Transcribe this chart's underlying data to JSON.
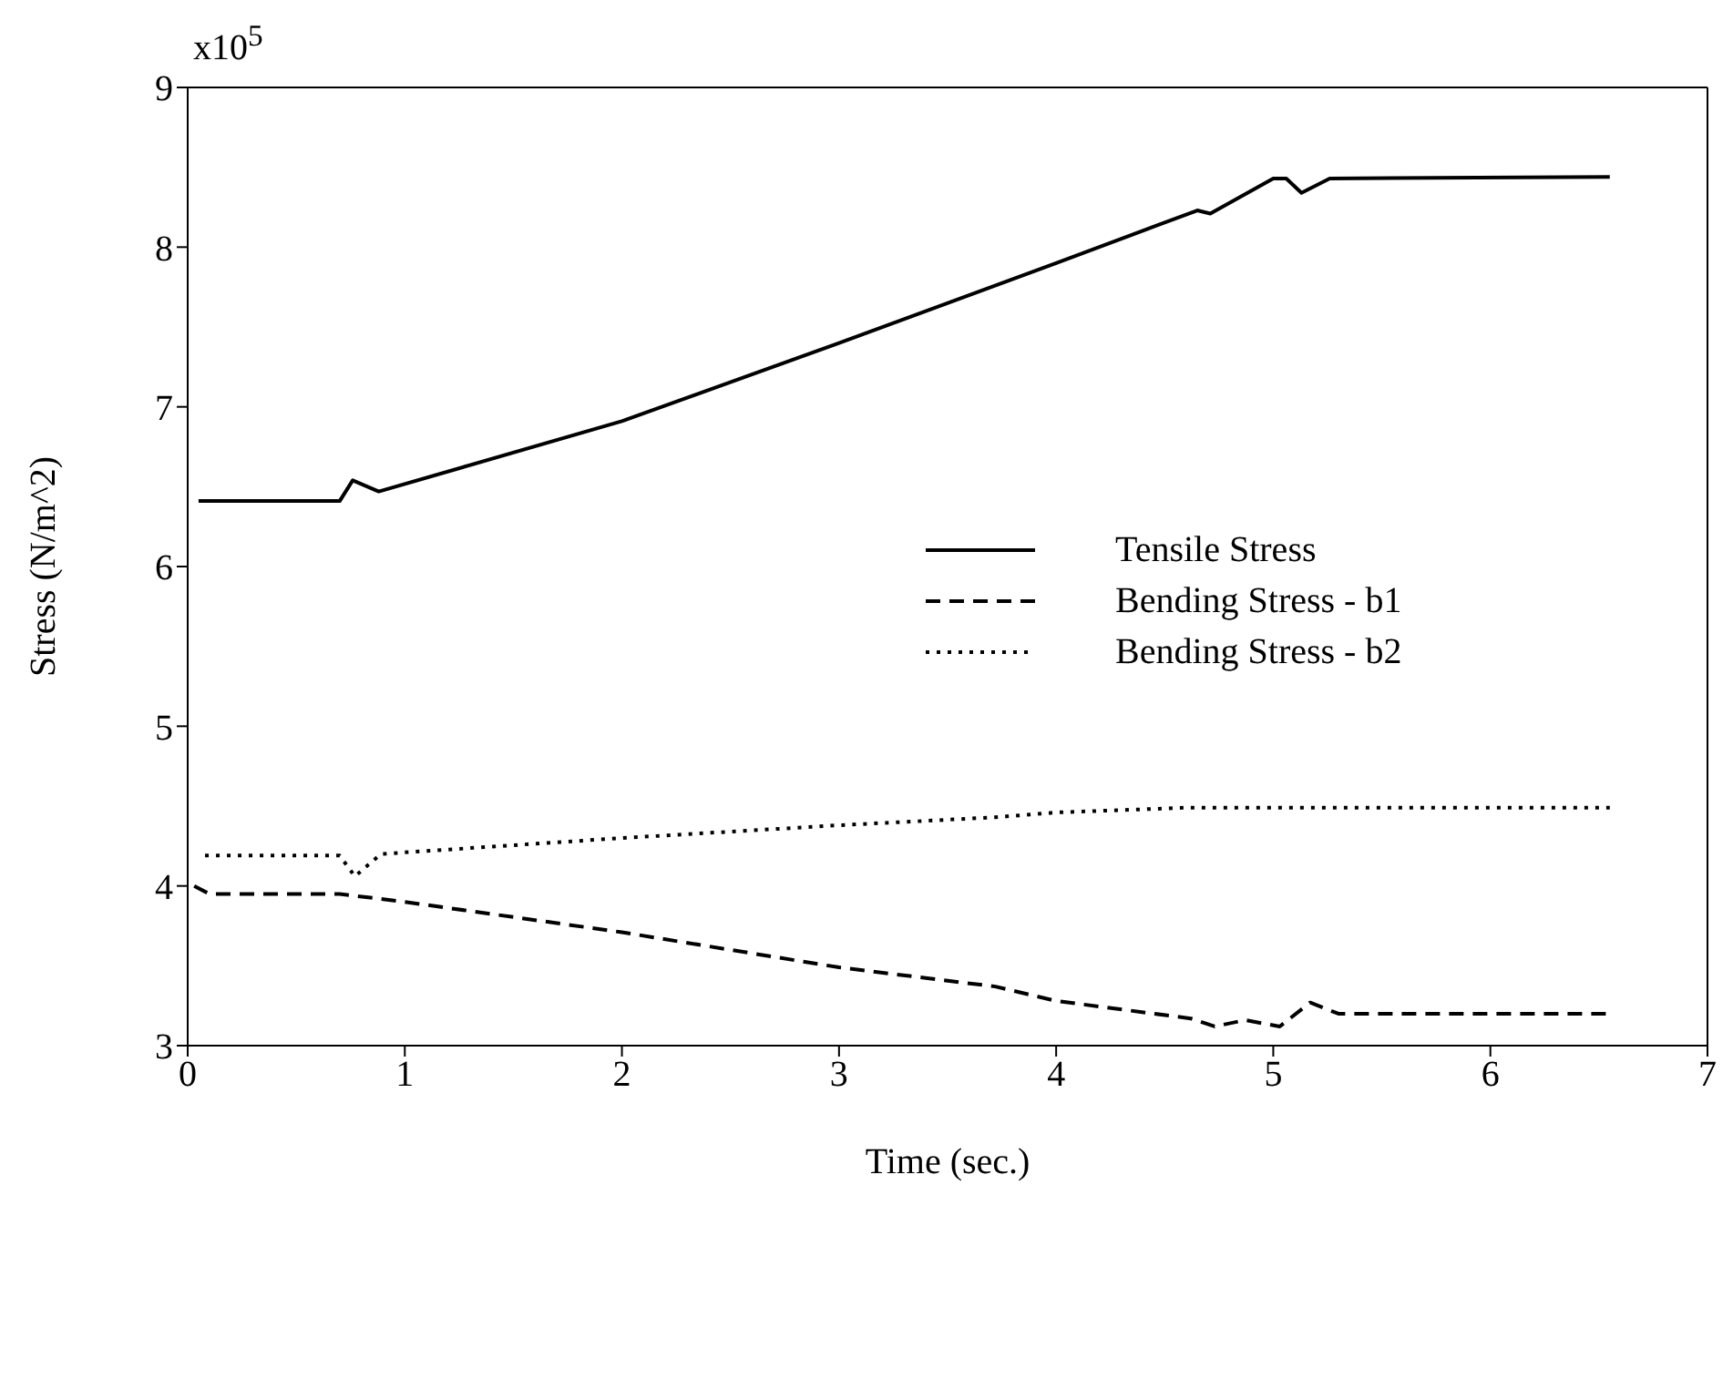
{
  "chart_data": {
    "type": "line",
    "xlabel": "Time (sec.)",
    "ylabel": "Stress (N/m^2)",
    "annotations": [
      "x10$^{5}$"
    ],
    "xlim": [
      0,
      7
    ],
    "xticks": [
      0,
      1,
      2,
      3,
      4,
      5,
      6,
      7
    ],
    "ylim": [
      3,
      9
    ],
    "yticks": [
      3,
      4,
      5,
      6,
      7,
      8,
      9
    ],
    "legend": "right",
    "marker": "none",
    "series": [
      {
        "name": "Tensile Stress",
        "color": "#000000",
        "line_style": "solid",
        "x": [
          0.05,
          0.7,
          0.76,
          0.88,
          2,
          3,
          4,
          4.65,
          4.71,
          5.0,
          5.06,
          5.13,
          5.26,
          6.55
        ],
        "values": [
          6.41,
          6.41,
          6.54,
          6.47,
          6.91,
          7.4,
          7.9,
          8.23,
          8.21,
          8.43,
          8.43,
          8.34,
          8.43,
          8.44
        ]
      },
      {
        "name": "Bending Stress - b1",
        "color": "#000000",
        "line_style": "dashed",
        "x": [
          0.03,
          0.1,
          0.7,
          1,
          2,
          3,
          3.72,
          4,
          4.62,
          4.73,
          4.87,
          5.03,
          5.17,
          5.3,
          6.55
        ],
        "values": [
          4.0,
          3.95,
          3.95,
          3.9,
          3.71,
          3.49,
          3.37,
          3.28,
          3.17,
          3.12,
          3.16,
          3.12,
          3.27,
          3.2,
          3.2
        ]
      },
      {
        "name": "Bending Stress - b2",
        "color": "#000000",
        "line_style": "dotted",
        "x": [
          0.08,
          0.7,
          0.77,
          0.89,
          2,
          3,
          3.72,
          4,
          4.6,
          6.55
        ],
        "values": [
          4.19,
          4.19,
          4.06,
          4.2,
          4.3,
          4.38,
          4.43,
          4.46,
          4.49,
          4.49
        ]
      }
    ]
  }
}
